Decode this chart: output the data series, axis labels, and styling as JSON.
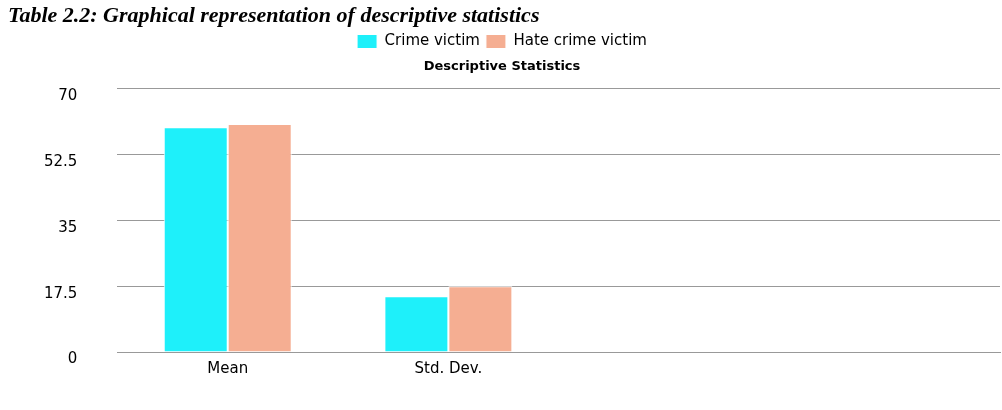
{
  "chart_data": {
    "type": "bar",
    "title": "Table 2.2: Graphical representation of descriptive statistics",
    "subtitle": "Descriptive Statistics",
    "categories": [
      "Mean",
      "Std. Dev.",
      null,
      null
    ],
    "series": [
      {
        "name": "Crime victim",
        "color": "#1ef0fa",
        "values": [
          59.7,
          14.8,
          null,
          null
        ]
      },
      {
        "name": "Hate crime victim",
        "color": "#f5ae92",
        "values": [
          60.6,
          17.5,
          null,
          null
        ]
      }
    ],
    "ylim": [
      0,
      70
    ],
    "yticks": [
      0,
      17.5,
      35,
      52.5,
      70
    ],
    "grid": "y",
    "legend": "top"
  }
}
